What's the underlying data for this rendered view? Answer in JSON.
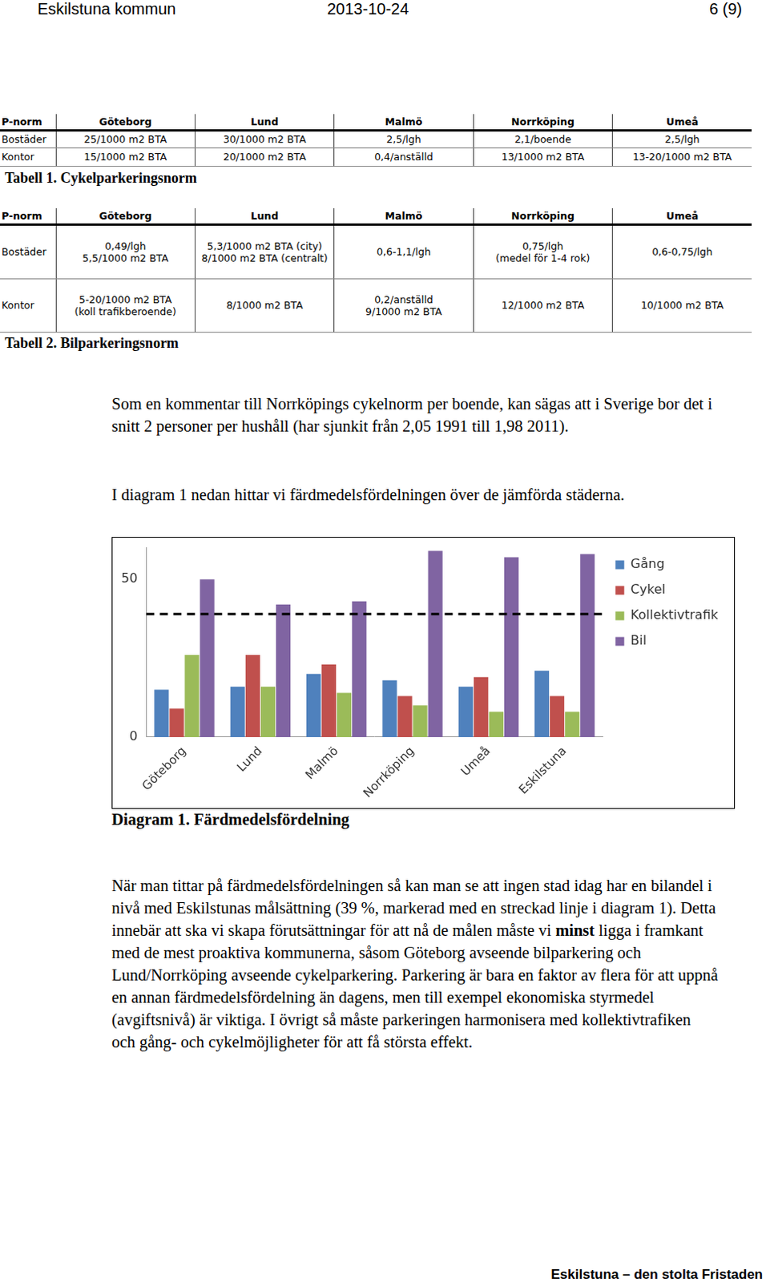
{
  "header": {
    "left": "Eskilstuna kommun",
    "center": "2013-10-24",
    "right": "6 (9)"
  },
  "tables": [
    {
      "columns": [
        "P-norm",
        "Göteborg",
        "Lund",
        "Malmö",
        "Norrköping",
        "Umeå"
      ],
      "rows": [
        [
          "Bostäder",
          "25/1000 m2 BTA",
          "30/1000 m2 BTA",
          "2,5/lgh",
          "2,1/boende",
          "2,5/lgh"
        ],
        [
          "Kontor",
          "15/1000 m2 BTA",
          "20/1000 m2 BTA",
          "0,4/anställd",
          "13/1000 m2 BTA",
          "13-20/1000 m2 BTA"
        ]
      ],
      "caption": "Tabell 1. Cykelparkeringsnorm"
    },
    {
      "columns": [
        "P-norm",
        "Göteborg",
        "Lund",
        "Malmö",
        "Norrköping",
        "Umeå"
      ],
      "rows": [
        [
          "Bostäder",
          [
            "0,49/lgh",
            "5,5/1000 m2 BTA"
          ],
          [
            "5,3/1000 m2 BTA (city)",
            "8/1000 m2 BTA (centralt)"
          ],
          [
            "0,6-1,1/lgh"
          ],
          [
            "0,75/lgh",
            "(medel för 1-4 rok)"
          ],
          [
            "0,6-0,75/lgh"
          ]
        ],
        [
          "Kontor",
          [
            "5-20/1000 m2 BTA",
            "(koll trafikberoende)"
          ],
          [
            "8/1000 m2 BTA"
          ],
          [
            "0,2/anställd",
            "9/1000 m2 BTA"
          ],
          [
            "12/1000 m2 BTA"
          ],
          [
            "10/1000 m2 BTA"
          ]
        ]
      ],
      "caption": "Tabell 2. Bilparkeringsnorm"
    }
  ],
  "paragraphs": [
    [
      {
        "text": "Som en kommentar till Norrköpings cykelnorm per boende, kan sägas att i Sverige bor det i snitt 2 personer per hushåll (har sjunkit från 2,05 1991 till 1,98 2011)."
      }
    ],
    [
      {
        "text": "I diagram 1 nedan hittar vi färdmedelsfördelningen över de jämförda städerna."
      }
    ]
  ],
  "chart_data": {
    "type": "bar",
    "categories": [
      "Göteborg",
      "Lund",
      "Malmö",
      "Norrköping",
      "Umeå",
      "Eskilstuna"
    ],
    "series": [
      {
        "name": "Gång",
        "color": "#4f81bd",
        "values": [
          15,
          16,
          20,
          18,
          16,
          21
        ]
      },
      {
        "name": "Cykel",
        "color": "#c0504d",
        "values": [
          9,
          26,
          23,
          13,
          19,
          13
        ]
      },
      {
        "name": "Kollektivtrafik",
        "color": "#9bbb59",
        "values": [
          26,
          16,
          14,
          10,
          8,
          8
        ]
      },
      {
        "name": "Bil",
        "color": "#8064a2",
        "values": [
          50,
          42,
          43,
          59,
          57,
          58
        ]
      }
    ],
    "target": 39,
    "ylim": [
      0,
      60
    ],
    "yticks": [
      0,
      50
    ],
    "grid": false,
    "legend": "right"
  },
  "chart_caption": "Diagram 1. Färdmedelsfördelning",
  "closing_paragraphs": [
    [
      {
        "text": "När man tittar på färdmedelsfördelningen så kan man se att ingen stad idag har en bilandel i nivå med Eskilstunas målsättning (39 %, markerad med en streckad linje i diagram 1). Detta innebär att ska vi skapa förutsättningar för att nå de målen måste vi "
      },
      {
        "text": "minst",
        "bold": true
      },
      {
        "text": " ligga i framkant med de mest proaktiva kommunerna, såsom Göteborg avseende bilparkering och Lund/Norrköping avseende cykelparkering. Parkering är bara en faktor av flera för att uppnå en annan färdmedelsfördelning än dagens, men till exempel ekonomiska styrmedel (avgiftsnivå) är viktiga. I övrigt så måste parkeringen harmonisera med kollektivtrafiken och gång- och cykelmöjligheter för att få största effekt."
      }
    ]
  ],
  "footer": "Eskilstuna – den stolta Fristaden"
}
